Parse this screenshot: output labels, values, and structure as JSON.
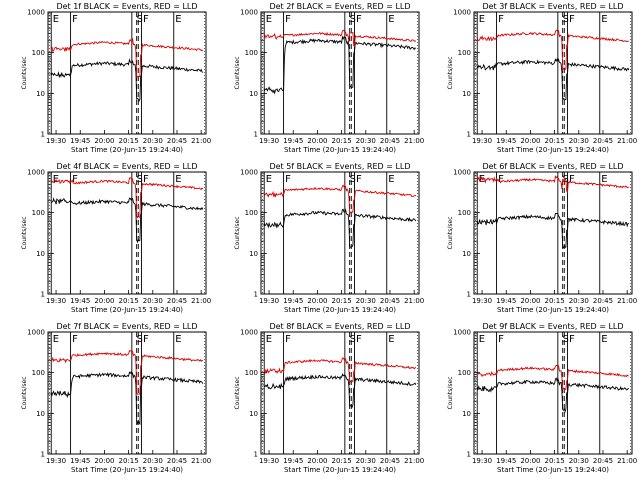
{
  "chart_data": {
    "type": "line",
    "legend": "BLACK = Events, RED = LLD",
    "series_colors": {
      "events": "#000000",
      "lld": "#dd0000"
    },
    "x_tick_labels": [
      "19:30",
      "19:45",
      "20:00",
      "20:15",
      "20:30",
      "20:45",
      "21:00"
    ],
    "x_range_minutes": [
      0,
      98
    ],
    "x_axis_label": "Start Time (20-Jun-15 19:24:40)",
    "y_axis_label": "Counts/sec",
    "y_scale": "log",
    "y_range": [
      1,
      1000
    ],
    "y_tick_labels": [
      "1",
      "10",
      "100",
      "1000"
    ],
    "segment_labels": [
      "E",
      "F",
      "S",
      "F",
      "E"
    ],
    "segment_minutes": [
      2,
      50,
      78
    ],
    "solid_markers_minutes": [
      2,
      14,
      52,
      58,
      78
    ],
    "dashed_markers_minutes": [
      55,
      56
    ],
    "detectors": [
      {
        "title": "Det 1f BLACK = Events, RED = LLD",
        "events": {
          "base": 55,
          "dip": 7,
          "pre": 28
        },
        "lld": {
          "base": 180,
          "dip": 25,
          "pre": 120
        }
      },
      {
        "title": "Det 2f BLACK = Events, RED = LLD",
        "events": {
          "base": 200,
          "dip": 15,
          "pre": 12
        },
        "lld": {
          "base": 300,
          "dip": 300,
          "pre": 250
        }
      },
      {
        "title": "Det 3f BLACK = Events, RED = LLD",
        "events": {
          "base": 60,
          "dip": 7,
          "pre": 45
        },
        "lld": {
          "base": 300,
          "dip": 40,
          "pre": 220
        }
      },
      {
        "title": "Det 4f BLACK = Events, RED = LLD",
        "events": {
          "base": 190,
          "dip": 20,
          "pre": 190
        },
        "lld": {
          "base": 600,
          "dip": 80,
          "pre": 600
        }
      },
      {
        "title": "Det 5f BLACK = Events, RED = LLD",
        "events": {
          "base": 100,
          "dip": 15,
          "pre": 50
        },
        "lld": {
          "base": 400,
          "dip": 100,
          "pre": 280
        }
      },
      {
        "title": "Det 6f BLACK = Events, RED = LLD",
        "events": {
          "base": 80,
          "dip": 15,
          "pre": 60
        },
        "lld": {
          "base": 650,
          "dip": 650,
          "pre": 650
        }
      },
      {
        "title": "Det 7f BLACK = Events, RED = LLD",
        "events": {
          "base": 90,
          "dip": 6,
          "pre": 30
        },
        "lld": {
          "base": 300,
          "dip": 30,
          "pre": 200
        }
      },
      {
        "title": "Det 8f BLACK = Events, RED = LLD",
        "events": {
          "base": 80,
          "dip": 15,
          "pre": 45
        },
        "lld": {
          "base": 200,
          "dip": 60,
          "pre": 110
        }
      },
      {
        "title": "Det 9f BLACK = Events, RED = LLD",
        "events": {
          "base": 60,
          "dip": 12,
          "pre": 40
        },
        "lld": {
          "base": 130,
          "dip": 40,
          "pre": 90
        }
      }
    ]
  }
}
